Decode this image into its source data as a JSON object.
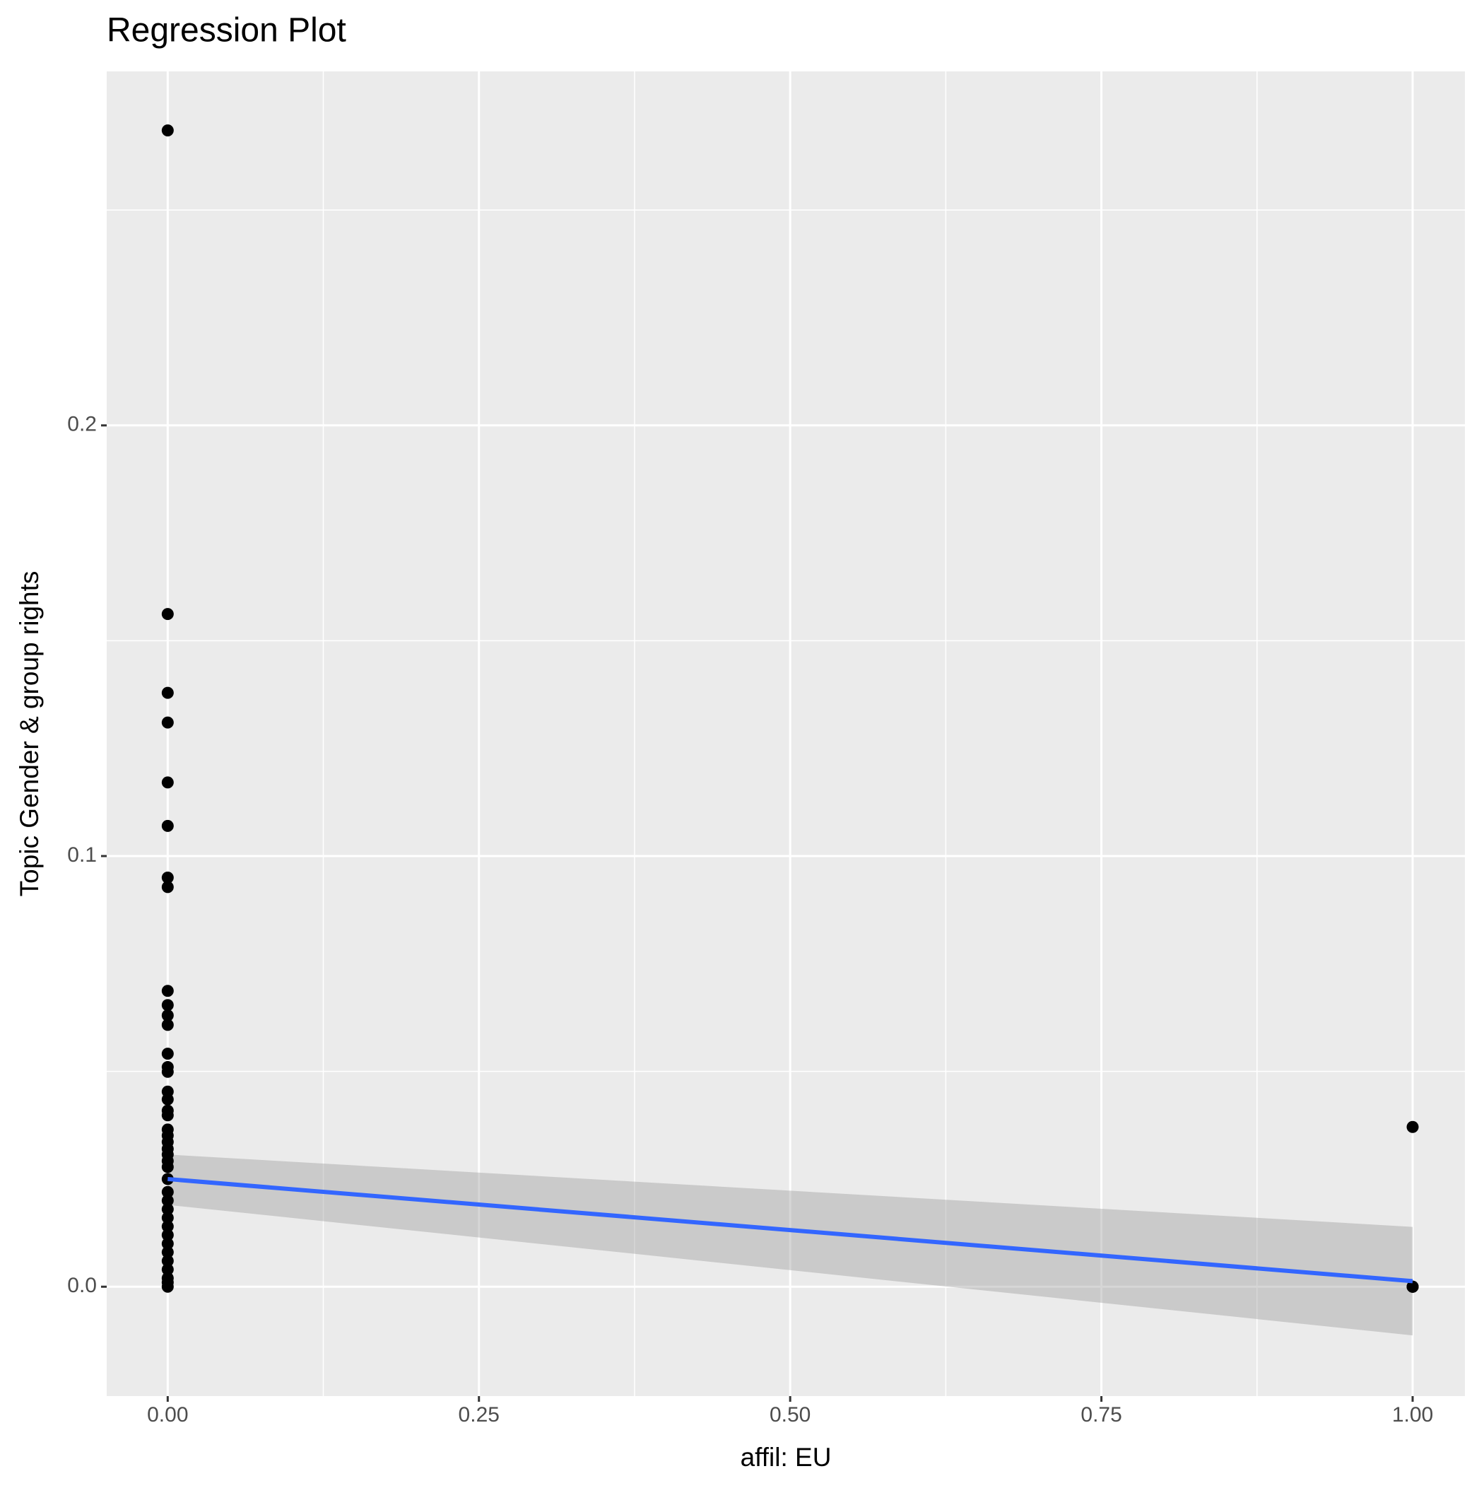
{
  "chart_data": {
    "type": "scatter",
    "title": "Regression Plot",
    "xlabel": "affil: EU",
    "ylabel": "Topic Gender & group rights",
    "xlim": [
      -0.049,
      1.042
    ],
    "ylim": [
      -0.0254,
      0.2822
    ],
    "xticks": [
      {
        "value": 0,
        "label": "0.00"
      },
      {
        "value": 0.25,
        "label": "0.25"
      },
      {
        "value": 0.5,
        "label": "0.50"
      },
      {
        "value": 0.75,
        "label": "0.75"
      },
      {
        "value": 1,
        "label": "1.00"
      }
    ],
    "yticks": [
      {
        "value": 0,
        "label": "0.0"
      },
      {
        "value": 0.1,
        "label": "0.1"
      },
      {
        "value": 0.2,
        "label": "0.2"
      }
    ],
    "xminorticks": [
      0.125,
      0.375,
      0.625,
      0.875
    ],
    "yminorticks": [
      0.05,
      0.15,
      0.25
    ],
    "grid": true,
    "color": "#000000",
    "x": [
      0,
      0,
      0,
      0,
      0,
      0,
      0,
      0,
      0,
      0,
      0,
      0,
      0,
      0,
      0,
      0,
      0,
      0,
      0,
      0,
      0,
      0,
      0,
      0,
      0,
      0,
      0,
      0,
      0,
      0,
      0,
      0,
      0,
      0,
      0,
      0,
      0,
      0,
      0,
      0,
      1,
      1,
      1,
      1
    ],
    "values": [
      0.2685,
      0.1562,
      0.1379,
      0.131,
      0.1171,
      0.107,
      0.095,
      0.0928,
      0.0687,
      0.0654,
      0.063,
      0.0608,
      0.0541,
      0.051,
      0.0499,
      0.0453,
      0.0435,
      0.0409,
      0.0398,
      0.0365,
      0.0351,
      0.0336,
      0.032,
      0.0307,
      0.0292,
      0.0278,
      0.025,
      0.022,
      0.02,
      0.018,
      0.016,
      0.014,
      0.012,
      0.01,
      0.008,
      0.006,
      0.004,
      0.002,
      0.001,
      0,
      0.0371,
      0,
      0,
      0
    ],
    "fit": {
      "color": "#3366FF",
      "band_color": "#999999",
      "x": [
        0,
        1
      ],
      "values": [
        0.025,
        0.0013
      ],
      "lower": [
        0.019,
        -0.0113
      ],
      "upper": [
        0.0307,
        0.0139
      ]
    }
  }
}
